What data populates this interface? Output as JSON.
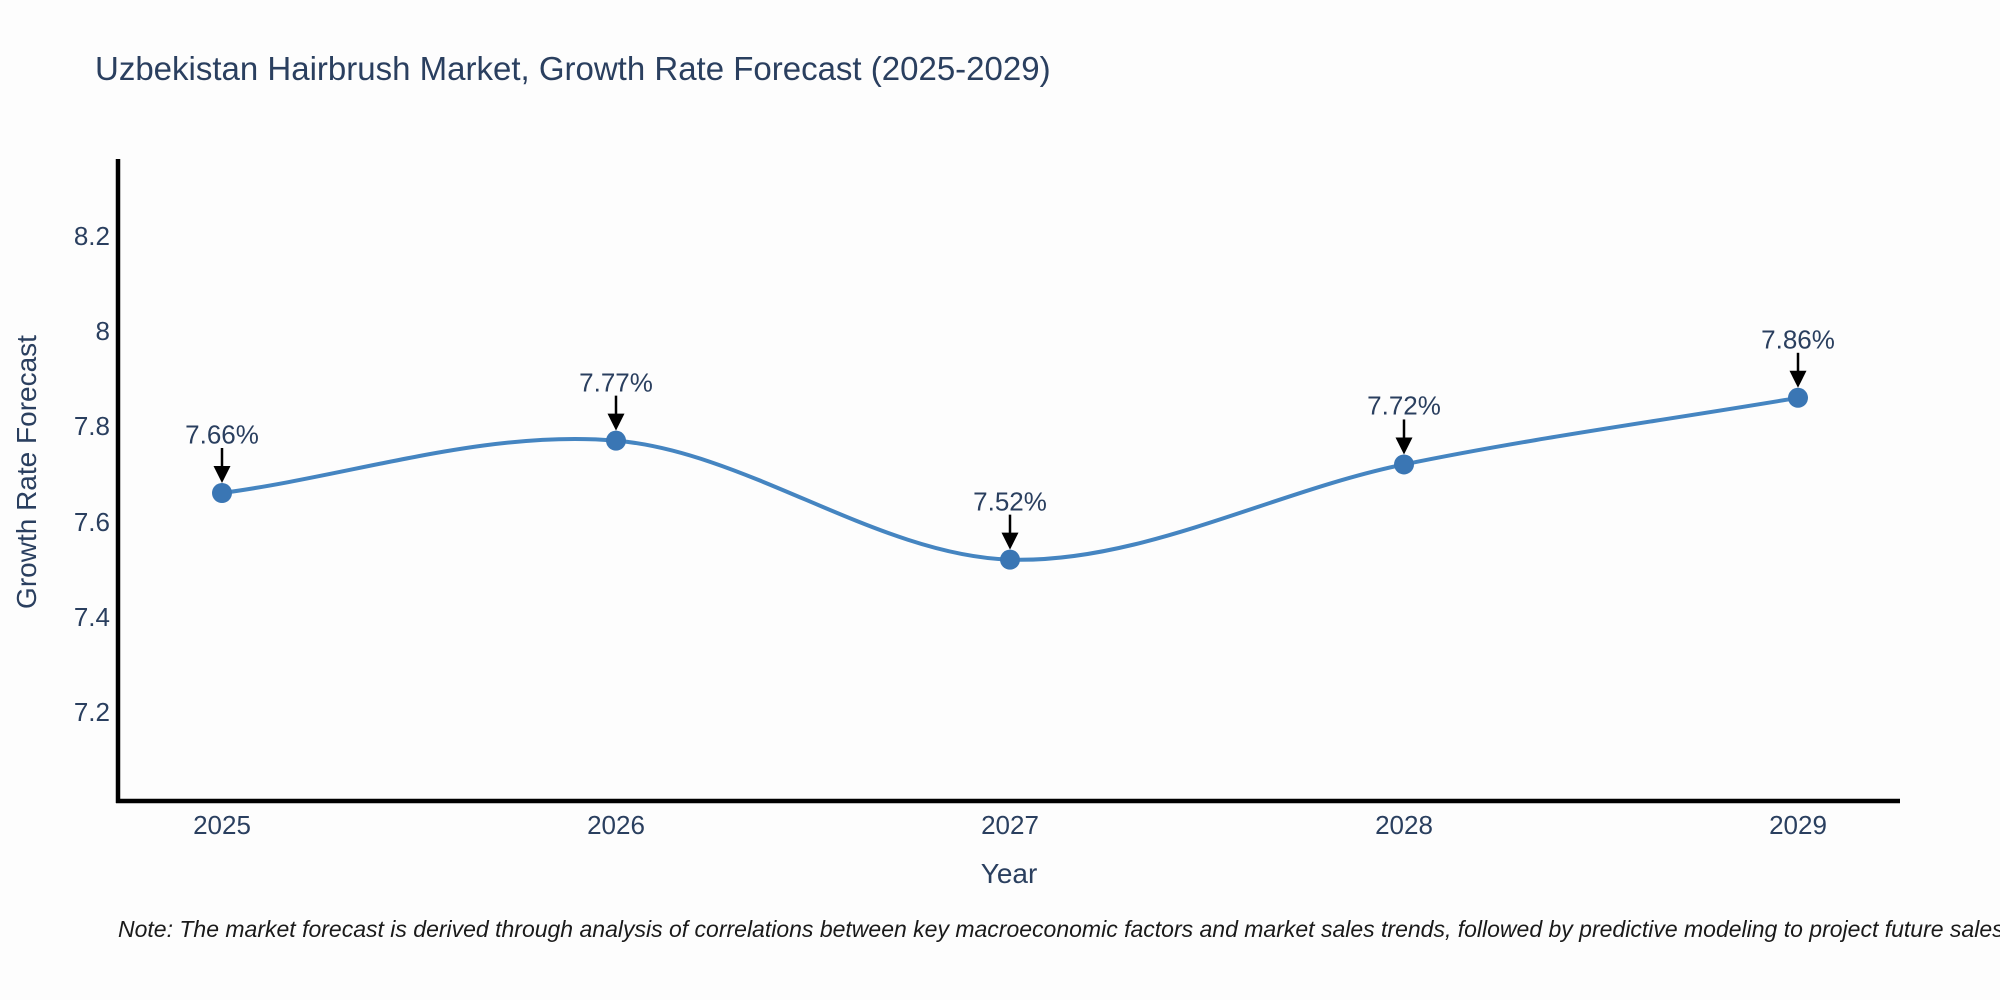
{
  "chart_data": {
    "type": "line",
    "title": "Uzbekistan Hairbrush Market, Growth Rate Forecast (2025-2029)",
    "xlabel": "Year",
    "ylabel": "Growth Rate Forecast",
    "x": [
      2025,
      2026,
      2027,
      2028,
      2029
    ],
    "series": [
      {
        "name": "Growth Rate Forecast",
        "values": [
          7.66,
          7.77,
          7.52,
          7.72,
          7.86
        ],
        "point_labels": [
          "7.66%",
          "7.77%",
          "7.52%",
          "7.72%",
          "7.86%"
        ]
      }
    ],
    "x_ticks": [
      "2025",
      "2026",
      "2027",
      "2028",
      "2029"
    ],
    "y_ticks": [
      8.2,
      8,
      7.8,
      7.6,
      7.4,
      7.2
    ],
    "ylim": [
      7.02,
      8.36
    ],
    "line_shape": "spline",
    "grid": false,
    "legend": "none",
    "markers": true,
    "annotations": "value labels with down arrows above each point",
    "note": "Note: The market forecast is derived through analysis of correlations between key macroeconomic factors and market sales trends, followed by predictive modeling to project future sales",
    "colors": {
      "line": "#4585c1",
      "marker": "#3a76b4",
      "text": "#2a3f5f",
      "axis": "#000000",
      "arrow": "#000000",
      "note_text": "#1a1a1a",
      "background": "#fdfdfd"
    }
  }
}
